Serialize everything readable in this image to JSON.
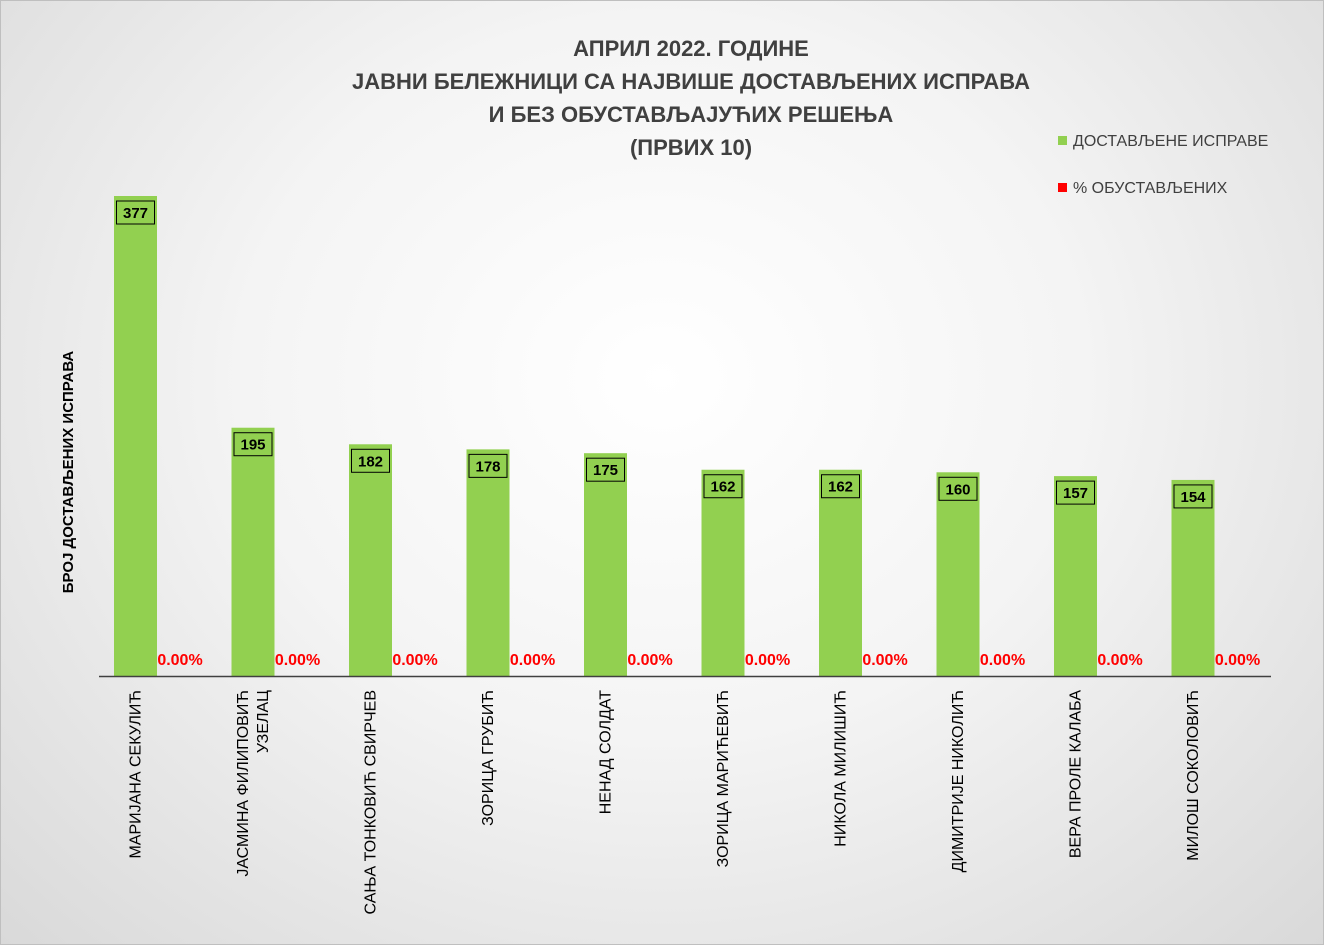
{
  "chart_data": {
    "type": "bar",
    "title_lines": [
      "АПРИЛ 2022. ГОДИНЕ",
      "ЈАВНИ БЕЛЕЖНИЦИ СА НАЈВИШЕ ДОСТАВЉЕНИХ ИСПРАВА",
      "И БЕЗ ОБУСТАВЉАЈУЋИХ РЕШЕЊА",
      "(ПРВИХ 10)"
    ],
    "ylabel": "БРОЈ ДОСТАВЉЕНИХ ИСПРАВА",
    "xlabel": "",
    "ylim": [
      0,
      400
    ],
    "grid": false,
    "legend_position": "top-right",
    "categories": [
      [
        "МАРИЈАНА СЕКУЛИЋ"
      ],
      [
        "ЈАСМИНА ФИЛИПОВИЋ",
        "УЗЕЛАЦ"
      ],
      [
        "САЊА ТОНКОВИЋ СВИРЧЕВ"
      ],
      [
        "ЗОРИЦА ГРУБИЋ"
      ],
      [
        "НЕНАД СОЛДАТ"
      ],
      [
        "ЗОРИЦА МАРИЋЕВИЋ"
      ],
      [
        "НИКОЛА МИЛИШИЋ"
      ],
      [
        "ДИМИТРИЈЕ НИКОЛИЋ"
      ],
      [
        "ВЕРА ПРОЛЕ КАЛАБА"
      ],
      [
        "МИЛОШ СОКОЛОВИЋ"
      ]
    ],
    "series": [
      {
        "name": "ДОСТАВЉЕНЕ ИСПРАВЕ",
        "color": "#92d050",
        "values": [
          377,
          195,
          182,
          178,
          175,
          162,
          162,
          160,
          157,
          154
        ],
        "labels": [
          "377",
          "195",
          "182",
          "178",
          "175",
          "162",
          "162",
          "160",
          "157",
          "154"
        ]
      },
      {
        "name": "% ОБУСТАВЉЕНИХ",
        "color": "#ff0000",
        "values": [
          0,
          0,
          0,
          0,
          0,
          0,
          0,
          0,
          0,
          0
        ],
        "labels": [
          "0.00%",
          "0.00%",
          "0.00%",
          "0.00%",
          "0.00%",
          "0.00%",
          "0.00%",
          "0.00%",
          "0.00%",
          "0.00%"
        ]
      }
    ]
  }
}
